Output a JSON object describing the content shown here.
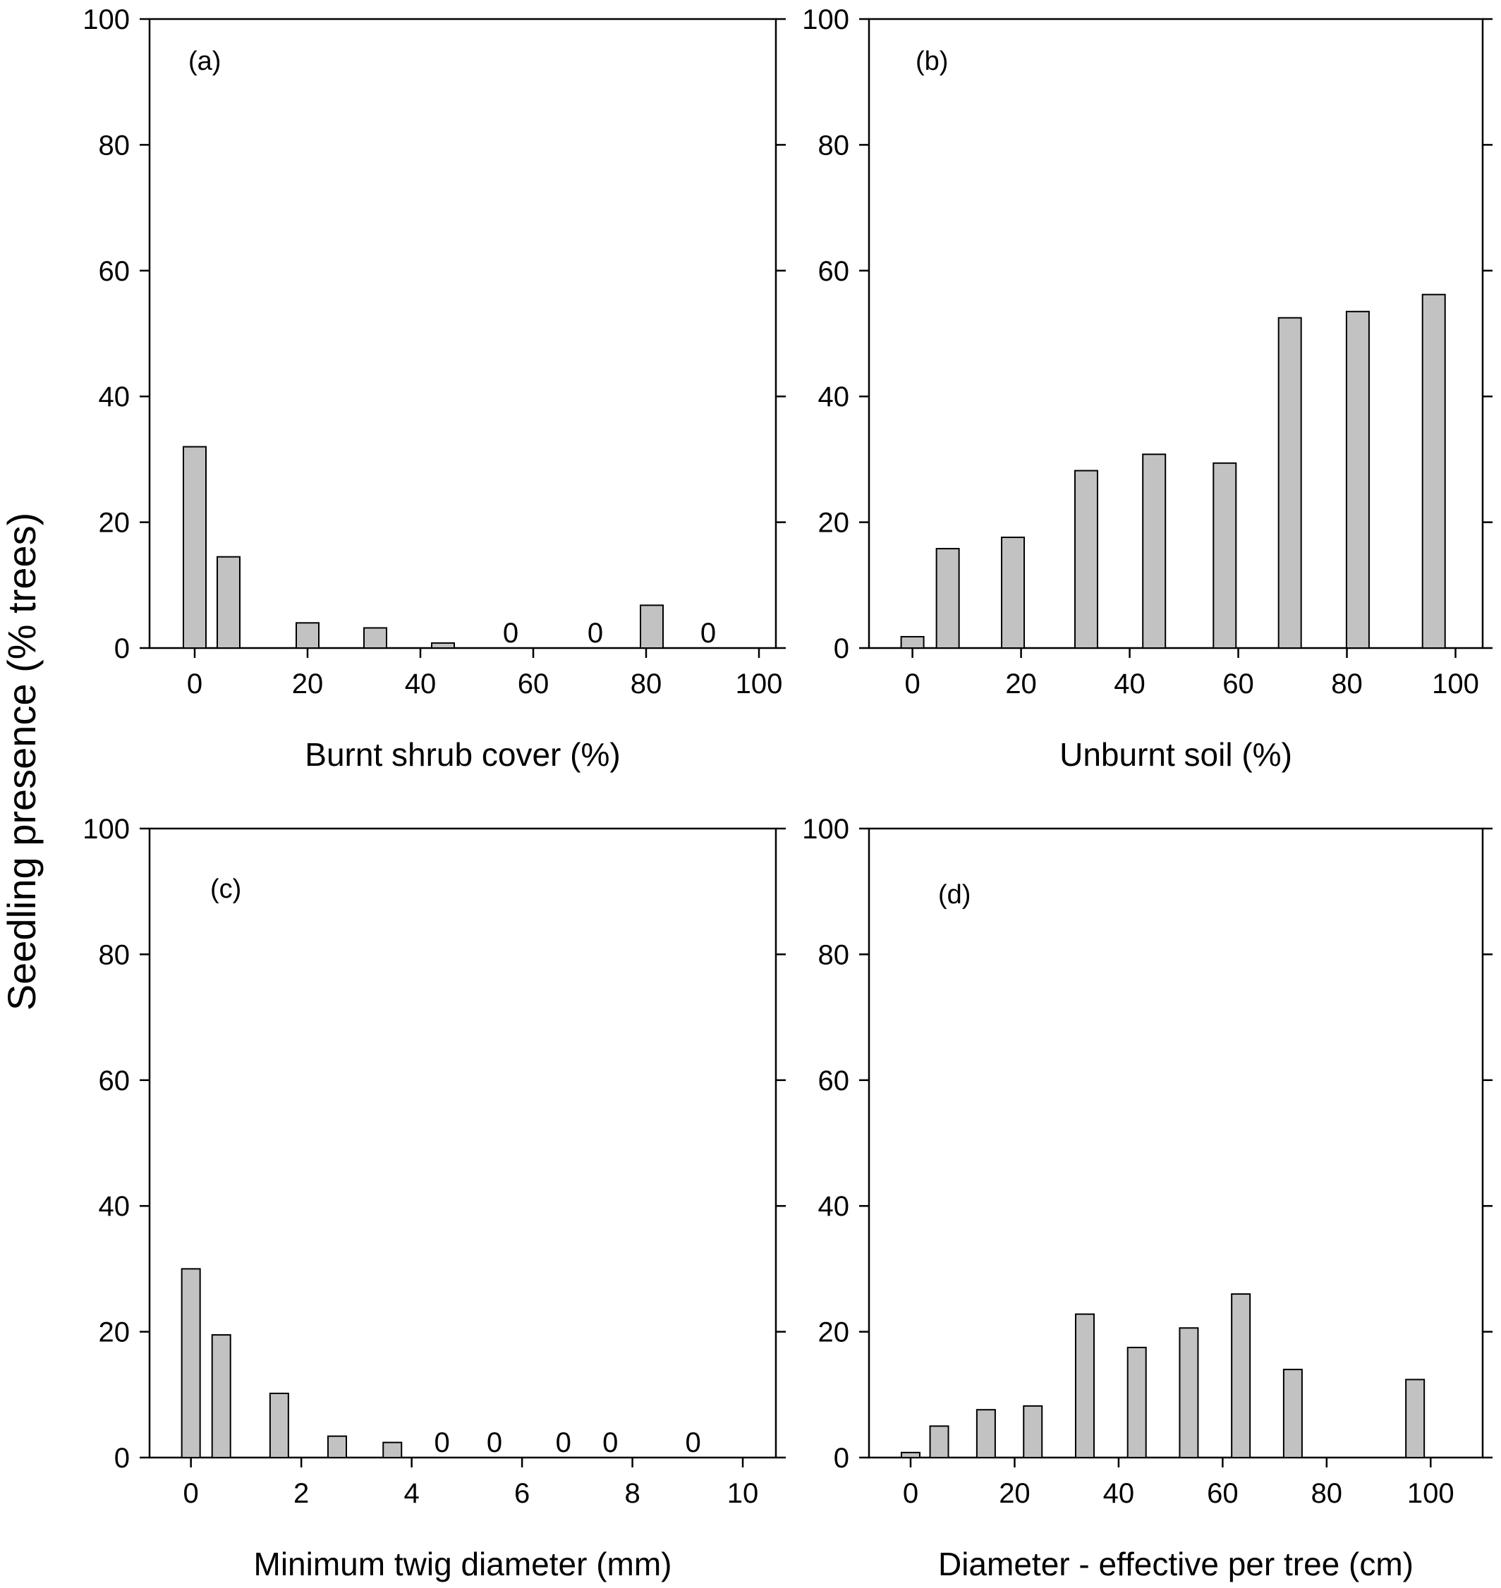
{
  "figure": {
    "shared_ylabel": "Seedling presence (% trees)"
  },
  "chart_data": [
    {
      "type": "bar",
      "panel": "(a)",
      "xlabel": "Burnt shrub cover (%)",
      "ylabel": "Seedling presence (% trees)",
      "xlim": [
        -8,
        103
      ],
      "ylim": [
        0,
        100
      ],
      "xticks": [
        0,
        20,
        40,
        60,
        80,
        100
      ],
      "yticks": [
        0,
        20,
        40,
        60,
        80,
        100
      ],
      "grid": false,
      "x": [
        0,
        6,
        20,
        32,
        44,
        56,
        71,
        81,
        91
      ],
      "values": [
        32,
        14.5,
        4,
        3.2,
        0.8,
        0,
        0,
        6.8,
        0
      ],
      "zero_labels": [
        "0",
        "0",
        "0"
      ]
    },
    {
      "type": "bar",
      "panel": "(b)",
      "xlabel": "Unburnt soil (%)",
      "ylabel": "Seedling presence (% trees)",
      "xlim": [
        -8,
        105
      ],
      "ylim": [
        0,
        100
      ],
      "xticks": [
        0,
        20,
        40,
        60,
        80,
        100
      ],
      "yticks": [
        0,
        20,
        40,
        60,
        80,
        100
      ],
      "grid": false,
      "x": [
        0,
        6.5,
        18.5,
        32,
        44.5,
        57.5,
        69.5,
        82,
        96
      ],
      "values": [
        1.8,
        15.8,
        17.6,
        28.2,
        30.8,
        29.4,
        52.5,
        53.5,
        56.2
      ],
      "zero_labels": []
    },
    {
      "type": "bar",
      "panel": "(c)",
      "xlabel": "Minimum twig diameter (mm)",
      "ylabel": "Seedling presence (% trees)",
      "xlim": [
        -0.75,
        10.6
      ],
      "ylim": [
        0,
        100
      ],
      "xticks": [
        0,
        2,
        4,
        6,
        8,
        10
      ],
      "yticks": [
        0,
        20,
        40,
        60,
        80,
        100
      ],
      "grid": false,
      "x": [
        0,
        0.55,
        1.6,
        2.65,
        3.65,
        4.55,
        5.5,
        6.75,
        7.6,
        9.1
      ],
      "values": [
        30,
        19.5,
        10.2,
        3.4,
        2.4,
        0,
        0,
        0,
        0,
        0
      ],
      "zero_labels": [
        "0",
        "0",
        "0",
        "0",
        "0"
      ]
    },
    {
      "type": "bar",
      "panel": "(d)",
      "xlabel": "Diameter - effective per tree (cm)",
      "ylabel": "Seedling presence (% trees)",
      "xlim": [
        -8,
        110
      ],
      "ylim": [
        0,
        100
      ],
      "xticks": [
        0,
        20,
        40,
        60,
        80,
        100
      ],
      "yticks": [
        0,
        20,
        40,
        60,
        80,
        100
      ],
      "grid": false,
      "x": [
        0,
        5.5,
        14.5,
        23.5,
        33.5,
        43.5,
        53.5,
        63.5,
        73.5,
        97
      ],
      "values": [
        0.8,
        5,
        7.6,
        8.2,
        22.8,
        17.5,
        20.6,
        26,
        14,
        12.4
      ],
      "zero_labels": []
    }
  ]
}
